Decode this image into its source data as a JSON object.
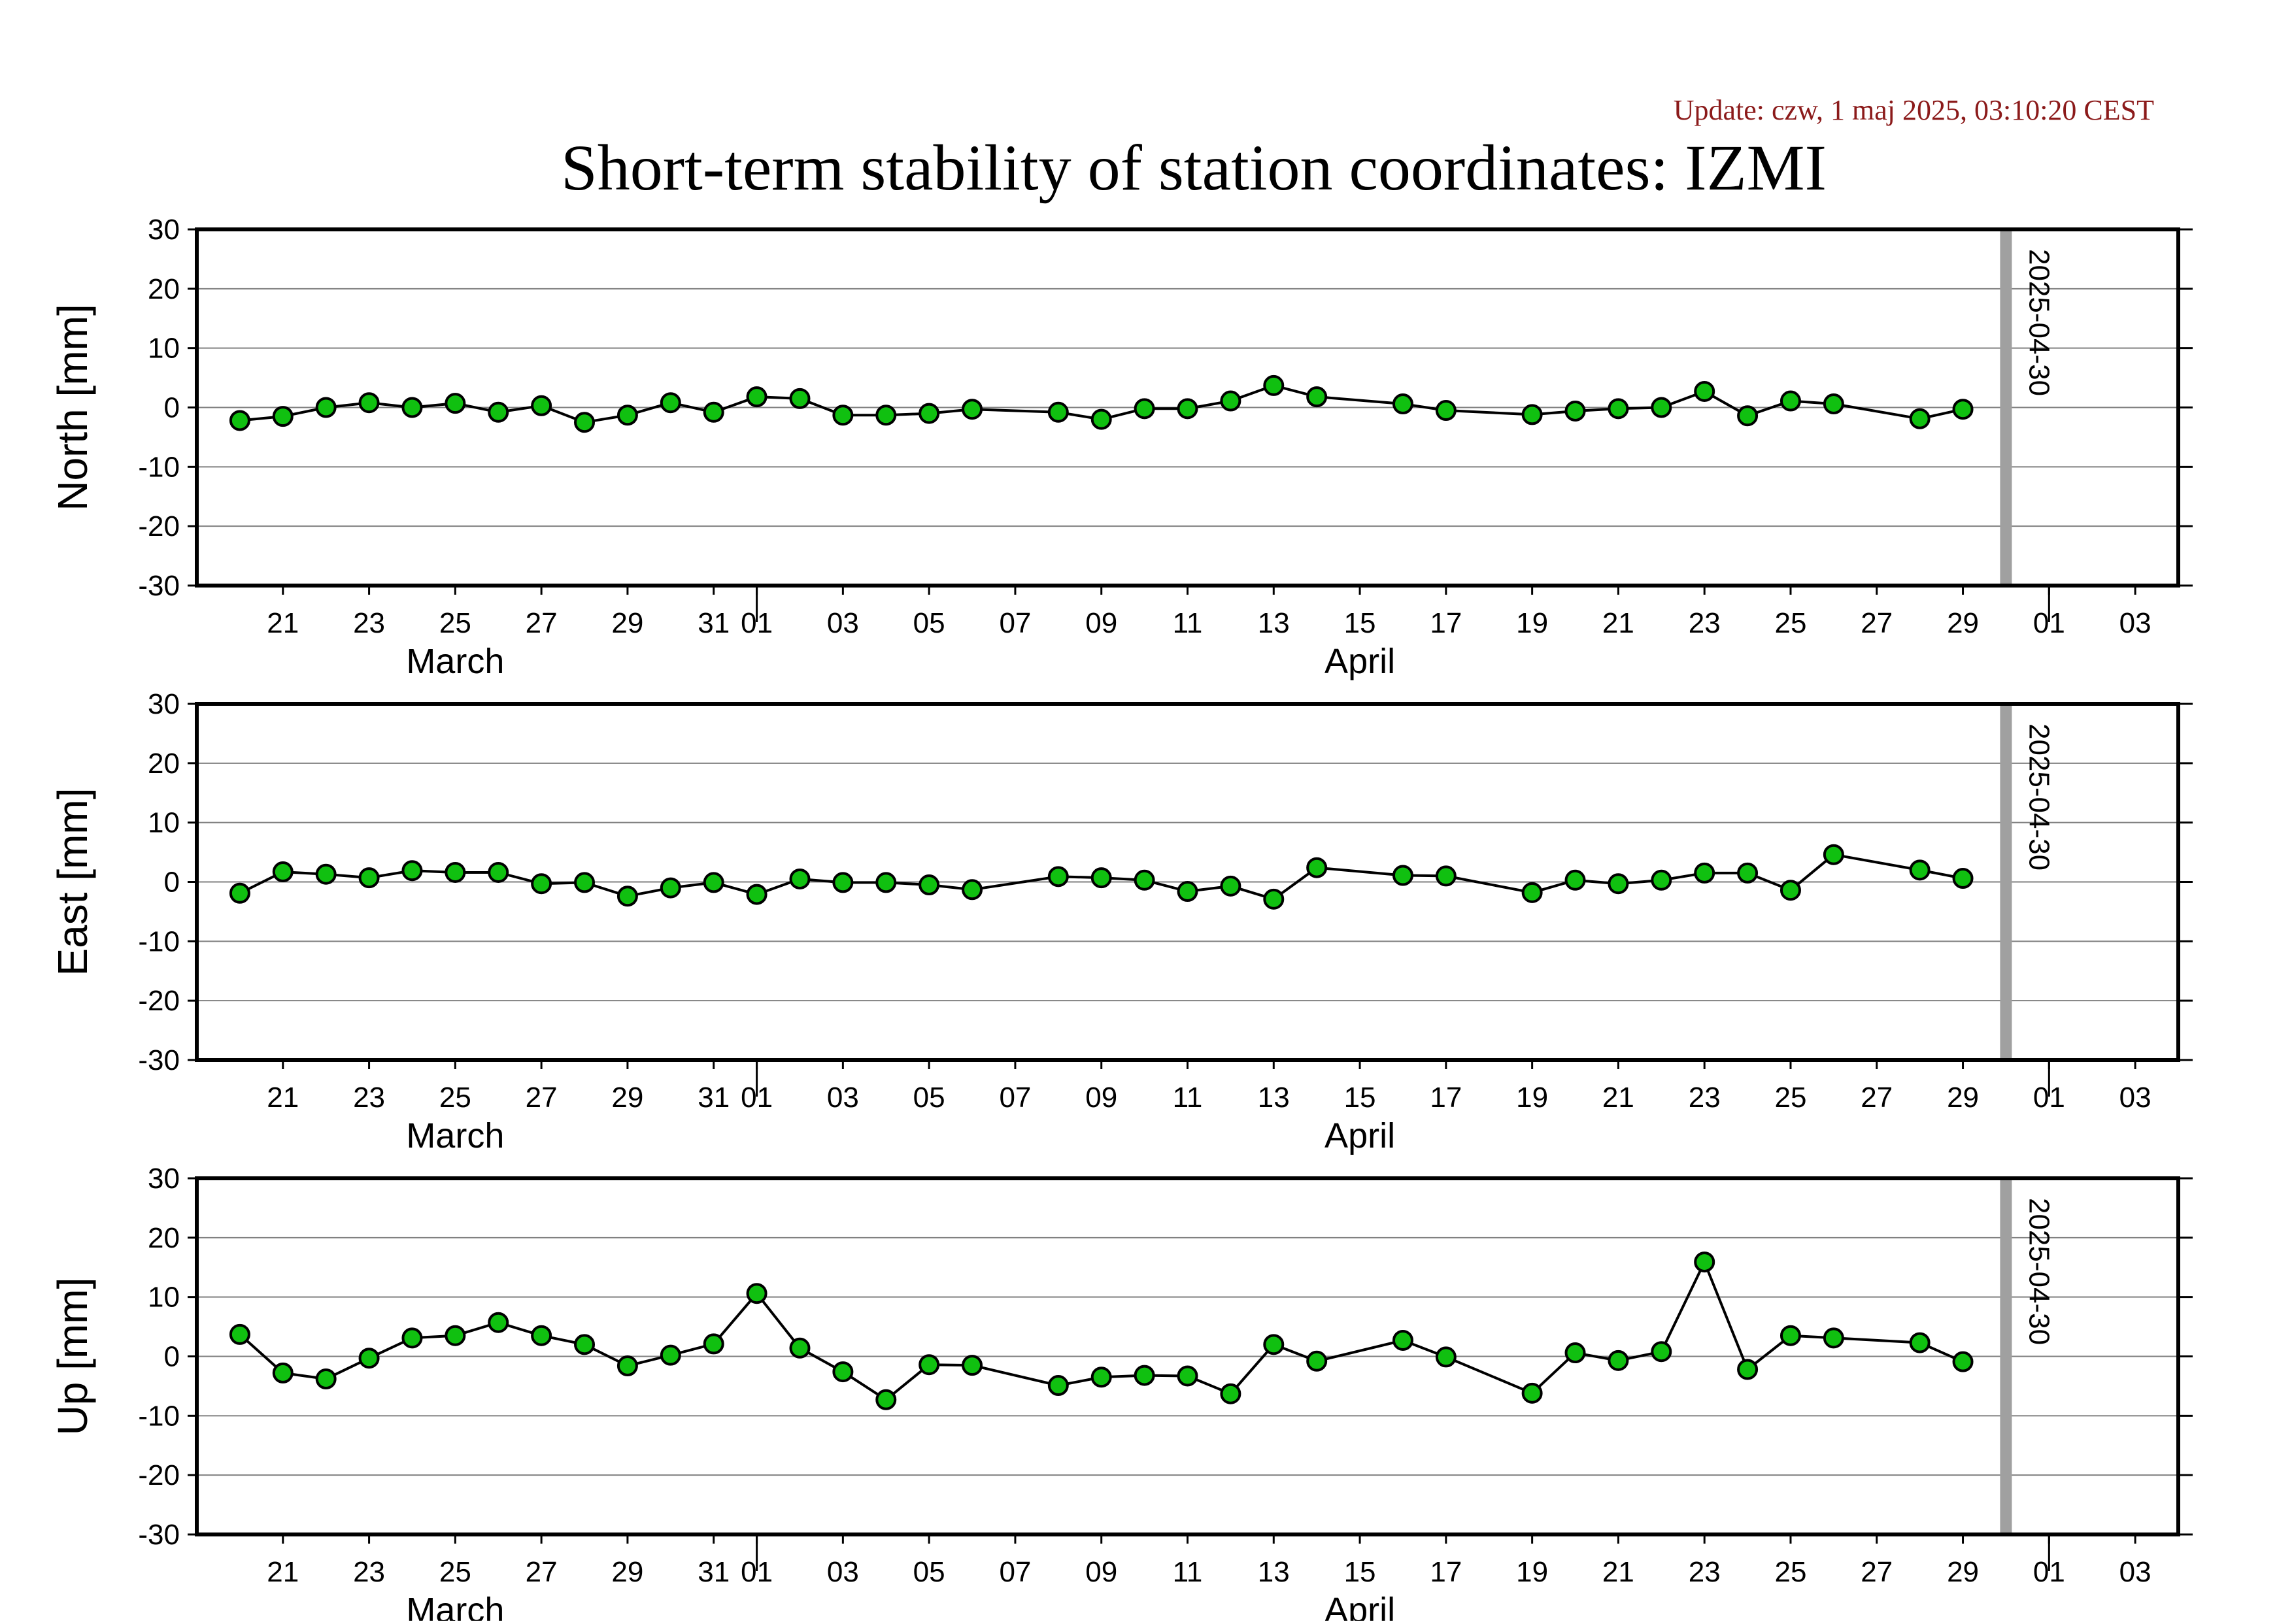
{
  "update_text": "Update: czw, 1 maj 2025, 03:10:20 CEST",
  "title": "Short-term stability of station coordinates: IZMI",
  "colors": {
    "marker_fill": "#10c010",
    "marker_stroke": "#000000",
    "line": "#000000",
    "grid": "#808080",
    "vline": "#a0a0a0",
    "update": "#8b1a1a"
  },
  "chart_data": [
    {
      "type": "line",
      "ylabel": "North [mm]",
      "ylim": [
        -30,
        30
      ],
      "yticks": [
        30,
        20,
        10,
        0,
        -10,
        -20,
        -30
      ],
      "xlim": [
        "2025-03-19",
        "2025-05-04"
      ],
      "xticks": [
        {
          "date": "2025-03-21",
          "label": "21"
        },
        {
          "date": "2025-03-23",
          "label": "23"
        },
        {
          "date": "2025-03-25",
          "label": "25"
        },
        {
          "date": "2025-03-27",
          "label": "27"
        },
        {
          "date": "2025-03-29",
          "label": "29"
        },
        {
          "date": "2025-03-31",
          "label": "31"
        },
        {
          "date": "2025-04-01",
          "label": "01"
        },
        {
          "date": "2025-04-03",
          "label": "03"
        },
        {
          "date": "2025-04-05",
          "label": "05"
        },
        {
          "date": "2025-04-07",
          "label": "07"
        },
        {
          "date": "2025-04-09",
          "label": "09"
        },
        {
          "date": "2025-04-11",
          "label": "11"
        },
        {
          "date": "2025-04-13",
          "label": "13"
        },
        {
          "date": "2025-04-15",
          "label": "15"
        },
        {
          "date": "2025-04-17",
          "label": "17"
        },
        {
          "date": "2025-04-19",
          "label": "19"
        },
        {
          "date": "2025-04-21",
          "label": "21"
        },
        {
          "date": "2025-04-23",
          "label": "23"
        },
        {
          "date": "2025-04-25",
          "label": "25"
        },
        {
          "date": "2025-04-27",
          "label": "27"
        },
        {
          "date": "2025-04-29",
          "label": "29"
        },
        {
          "date": "2025-05-01",
          "label": "01"
        },
        {
          "date": "2025-05-03",
          "label": "03"
        }
      ],
      "month_labels": [
        {
          "date": "2025-03-25",
          "label": "March"
        },
        {
          "date": "2025-04-15",
          "label": "April"
        }
      ],
      "month_boundaries": [
        "2025-04-01",
        "2025-05-01"
      ],
      "marker_date": {
        "date": "2025-04-30",
        "label": "2025-04-30"
      },
      "grid": true,
      "x": [
        "2025-03-20",
        "2025-03-21",
        "2025-03-22",
        "2025-03-23",
        "2025-03-24",
        "2025-03-25",
        "2025-03-26",
        "2025-03-27",
        "2025-03-28",
        "2025-03-29",
        "2025-03-30",
        "2025-03-31",
        "2025-04-01",
        "2025-04-02",
        "2025-04-03",
        "2025-04-04",
        "2025-04-05",
        "2025-04-06",
        "2025-04-08",
        "2025-04-09",
        "2025-04-10",
        "2025-04-11",
        "2025-04-12",
        "2025-04-13",
        "2025-04-14",
        "2025-04-16",
        "2025-04-17",
        "2025-04-19",
        "2025-04-20",
        "2025-04-21",
        "2025-04-22",
        "2025-04-23",
        "2025-04-24",
        "2025-04-25",
        "2025-04-26",
        "2025-04-28",
        "2025-04-29"
      ],
      "y": [
        -2.2,
        -1.5,
        0.0,
        0.8,
        0.0,
        0.7,
        -0.8,
        0.3,
        -2.5,
        -1.3,
        0.8,
        -0.8,
        1.8,
        1.5,
        -1.3,
        -1.3,
        -1.0,
        -0.3,
        -0.8,
        -2.0,
        -0.2,
        -0.2,
        1.1,
        3.7,
        1.8,
        0.6,
        -0.5,
        -1.2,
        -0.6,
        -0.2,
        0.0,
        2.7,
        -1.4,
        1.1,
        0.6,
        -1.9,
        -0.3
      ]
    },
    {
      "type": "line",
      "ylabel": "East [mm]",
      "ylim": [
        -30,
        30
      ],
      "yticks": [
        30,
        20,
        10,
        0,
        -10,
        -20,
        -30
      ],
      "xlim": [
        "2025-03-19",
        "2025-05-04"
      ],
      "xticks": [
        {
          "date": "2025-03-21",
          "label": "21"
        },
        {
          "date": "2025-03-23",
          "label": "23"
        },
        {
          "date": "2025-03-25",
          "label": "25"
        },
        {
          "date": "2025-03-27",
          "label": "27"
        },
        {
          "date": "2025-03-29",
          "label": "29"
        },
        {
          "date": "2025-03-31",
          "label": "31"
        },
        {
          "date": "2025-04-01",
          "label": "01"
        },
        {
          "date": "2025-04-03",
          "label": "03"
        },
        {
          "date": "2025-04-05",
          "label": "05"
        },
        {
          "date": "2025-04-07",
          "label": "07"
        },
        {
          "date": "2025-04-09",
          "label": "09"
        },
        {
          "date": "2025-04-11",
          "label": "11"
        },
        {
          "date": "2025-04-13",
          "label": "13"
        },
        {
          "date": "2025-04-15",
          "label": "15"
        },
        {
          "date": "2025-04-17",
          "label": "17"
        },
        {
          "date": "2025-04-19",
          "label": "19"
        },
        {
          "date": "2025-04-21",
          "label": "21"
        },
        {
          "date": "2025-04-23",
          "label": "23"
        },
        {
          "date": "2025-04-25",
          "label": "25"
        },
        {
          "date": "2025-04-27",
          "label": "27"
        },
        {
          "date": "2025-04-29",
          "label": "29"
        },
        {
          "date": "2025-05-01",
          "label": "01"
        },
        {
          "date": "2025-05-03",
          "label": "03"
        }
      ],
      "month_labels": [
        {
          "date": "2025-03-25",
          "label": "March"
        },
        {
          "date": "2025-04-15",
          "label": "April"
        }
      ],
      "month_boundaries": [
        "2025-04-01",
        "2025-05-01"
      ],
      "marker_date": {
        "date": "2025-04-30",
        "label": "2025-04-30"
      },
      "grid": true,
      "x": [
        "2025-03-20",
        "2025-03-21",
        "2025-03-22",
        "2025-03-23",
        "2025-03-24",
        "2025-03-25",
        "2025-03-26",
        "2025-03-27",
        "2025-03-28",
        "2025-03-29",
        "2025-03-30",
        "2025-03-31",
        "2025-04-01",
        "2025-04-02",
        "2025-04-03",
        "2025-04-04",
        "2025-04-05",
        "2025-04-06",
        "2025-04-08",
        "2025-04-09",
        "2025-04-10",
        "2025-04-11",
        "2025-04-12",
        "2025-04-13",
        "2025-04-14",
        "2025-04-16",
        "2025-04-17",
        "2025-04-19",
        "2025-04-20",
        "2025-04-21",
        "2025-04-22",
        "2025-04-23",
        "2025-04-24",
        "2025-04-25",
        "2025-04-26",
        "2025-04-28",
        "2025-04-29"
      ],
      "y": [
        -1.9,
        1.7,
        1.3,
        0.7,
        1.9,
        1.6,
        1.6,
        -0.3,
        -0.1,
        -2.4,
        -1.0,
        -0.1,
        -2.1,
        0.5,
        -0.1,
        -0.1,
        -0.5,
        -1.3,
        0.9,
        0.7,
        0.3,
        -1.6,
        -0.7,
        -2.9,
        2.4,
        1.1,
        1.0,
        -1.8,
        0.3,
        -0.3,
        0.3,
        1.5,
        1.5,
        -1.4,
        4.6,
        2.0,
        0.6
      ]
    },
    {
      "type": "line",
      "ylabel": "Up [mm]",
      "ylim": [
        -30,
        30
      ],
      "yticks": [
        30,
        20,
        10,
        0,
        -10,
        -20,
        -30
      ],
      "xlim": [
        "2025-03-19",
        "2025-05-04"
      ],
      "xticks": [
        {
          "date": "2025-03-21",
          "label": "21"
        },
        {
          "date": "2025-03-23",
          "label": "23"
        },
        {
          "date": "2025-03-25",
          "label": "25"
        },
        {
          "date": "2025-03-27",
          "label": "27"
        },
        {
          "date": "2025-03-29",
          "label": "29"
        },
        {
          "date": "2025-03-31",
          "label": "31"
        },
        {
          "date": "2025-04-01",
          "label": "01"
        },
        {
          "date": "2025-04-03",
          "label": "03"
        },
        {
          "date": "2025-04-05",
          "label": "05"
        },
        {
          "date": "2025-04-07",
          "label": "07"
        },
        {
          "date": "2025-04-09",
          "label": "09"
        },
        {
          "date": "2025-04-11",
          "label": "11"
        },
        {
          "date": "2025-04-13",
          "label": "13"
        },
        {
          "date": "2025-04-15",
          "label": "15"
        },
        {
          "date": "2025-04-17",
          "label": "17"
        },
        {
          "date": "2025-04-19",
          "label": "19"
        },
        {
          "date": "2025-04-21",
          "label": "21"
        },
        {
          "date": "2025-04-23",
          "label": "23"
        },
        {
          "date": "2025-04-25",
          "label": "25"
        },
        {
          "date": "2025-04-27",
          "label": "27"
        },
        {
          "date": "2025-04-29",
          "label": "29"
        },
        {
          "date": "2025-05-01",
          "label": "01"
        },
        {
          "date": "2025-05-03",
          "label": "03"
        }
      ],
      "month_labels": [
        {
          "date": "2025-03-25",
          "label": "March"
        },
        {
          "date": "2025-04-15",
          "label": "April"
        }
      ],
      "month_boundaries": [
        "2025-04-01",
        "2025-05-01"
      ],
      "marker_date": {
        "date": "2025-04-30",
        "label": "2025-04-30"
      },
      "grid": true,
      "x": [
        "2025-03-20",
        "2025-03-21",
        "2025-03-22",
        "2025-03-23",
        "2025-03-24",
        "2025-03-25",
        "2025-03-26",
        "2025-03-27",
        "2025-03-28",
        "2025-03-29",
        "2025-03-30",
        "2025-03-31",
        "2025-04-01",
        "2025-04-02",
        "2025-04-03",
        "2025-04-04",
        "2025-04-05",
        "2025-04-06",
        "2025-04-08",
        "2025-04-09",
        "2025-04-10",
        "2025-04-11",
        "2025-04-12",
        "2025-04-13",
        "2025-04-14",
        "2025-04-16",
        "2025-04-17",
        "2025-04-19",
        "2025-04-20",
        "2025-04-21",
        "2025-04-22",
        "2025-04-23",
        "2025-04-24",
        "2025-04-25",
        "2025-04-26",
        "2025-04-28",
        "2025-04-29"
      ],
      "y": [
        3.7,
        -2.8,
        -3.8,
        -0.3,
        3.1,
        3.5,
        5.7,
        3.5,
        2.0,
        -1.6,
        0.2,
        2.1,
        10.6,
        1.4,
        -2.6,
        -7.3,
        -1.4,
        -1.5,
        -4.9,
        -3.5,
        -3.2,
        -3.3,
        -6.3,
        2.0,
        -0.8,
        2.7,
        -0.1,
        -6.2,
        0.6,
        -0.7,
        0.8,
        15.9,
        -2.2,
        3.5,
        3.1,
        2.3,
        -0.9
      ]
    }
  ]
}
